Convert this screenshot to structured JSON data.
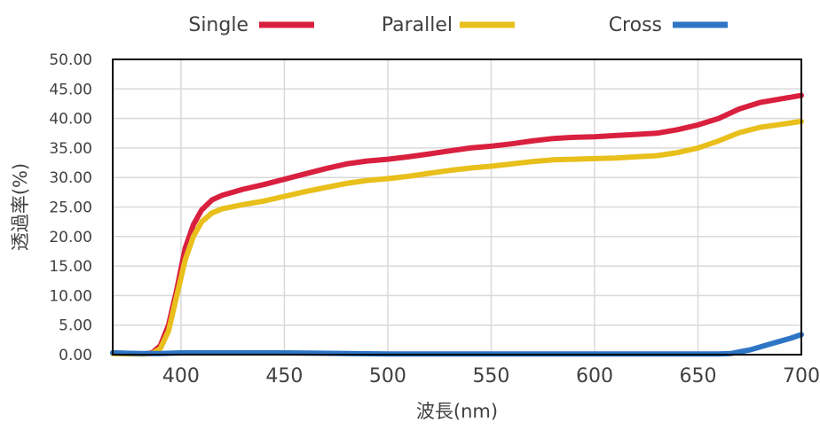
{
  "chart_data": {
    "type": "line",
    "xlabel": "波長(nm)",
    "ylabel": "透過率(%)",
    "xlim": [
      367,
      700
    ],
    "ylim": [
      0,
      50
    ],
    "grid": true,
    "legend_position": "top",
    "x_ticks": [
      "400",
      "450",
      "500",
      "550",
      "600",
      "650",
      "700"
    ],
    "y_ticks": [
      "0.00",
      "5.00",
      "10.00",
      "15.00",
      "20.00",
      "25.00",
      "30.00",
      "35.00",
      "40.00",
      "45.00",
      "50.00"
    ],
    "series": [
      {
        "name": "Single",
        "color": "#D9203E",
        "points": [
          [
            367,
            0.3
          ],
          [
            375,
            0.2
          ],
          [
            382,
            0.1
          ],
          [
            386,
            0.3
          ],
          [
            390,
            1.5
          ],
          [
            394,
            5
          ],
          [
            398,
            11
          ],
          [
            402,
            18
          ],
          [
            406,
            22
          ],
          [
            410,
            24.5
          ],
          [
            415,
            26.2
          ],
          [
            420,
            27
          ],
          [
            430,
            28
          ],
          [
            440,
            28.8
          ],
          [
            450,
            29.7
          ],
          [
            460,
            30.6
          ],
          [
            470,
            31.5
          ],
          [
            480,
            32.3
          ],
          [
            490,
            32.8
          ],
          [
            500,
            33.1
          ],
          [
            510,
            33.5
          ],
          [
            520,
            34
          ],
          [
            530,
            34.5
          ],
          [
            540,
            35
          ],
          [
            550,
            35.3
          ],
          [
            560,
            35.7
          ],
          [
            570,
            36.2
          ],
          [
            580,
            36.6
          ],
          [
            590,
            36.8
          ],
          [
            600,
            36.9
          ],
          [
            610,
            37.1
          ],
          [
            620,
            37.3
          ],
          [
            630,
            37.5
          ],
          [
            640,
            38.1
          ],
          [
            650,
            38.9
          ],
          [
            660,
            40
          ],
          [
            670,
            41.6
          ],
          [
            680,
            42.7
          ],
          [
            690,
            43.3
          ],
          [
            700,
            43.9
          ]
        ]
      },
      {
        "name": "Parallel",
        "color": "#E8BF1B",
        "points": [
          [
            367,
            0.2
          ],
          [
            375,
            0.1
          ],
          [
            382,
            0.1
          ],
          [
            386,
            0.2
          ],
          [
            390,
            1
          ],
          [
            394,
            4
          ],
          [
            398,
            10
          ],
          [
            402,
            16
          ],
          [
            406,
            20
          ],
          [
            410,
            22.5
          ],
          [
            415,
            24
          ],
          [
            420,
            24.7
          ],
          [
            430,
            25.4
          ],
          [
            440,
            26
          ],
          [
            450,
            26.8
          ],
          [
            460,
            27.6
          ],
          [
            470,
            28.3
          ],
          [
            480,
            29
          ],
          [
            490,
            29.5
          ],
          [
            500,
            29.8
          ],
          [
            510,
            30.2
          ],
          [
            520,
            30.7
          ],
          [
            530,
            31.2
          ],
          [
            540,
            31.6
          ],
          [
            550,
            31.9
          ],
          [
            560,
            32.3
          ],
          [
            570,
            32.7
          ],
          [
            580,
            33
          ],
          [
            590,
            33.1
          ],
          [
            600,
            33.2
          ],
          [
            610,
            33.3
          ],
          [
            620,
            33.5
          ],
          [
            630,
            33.7
          ],
          [
            640,
            34.2
          ],
          [
            650,
            35
          ],
          [
            660,
            36.2
          ],
          [
            670,
            37.6
          ],
          [
            680,
            38.5
          ],
          [
            690,
            39
          ],
          [
            700,
            39.5
          ]
        ]
      },
      {
        "name": "Cross",
        "color": "#2E75C6",
        "points": [
          [
            367,
            0.3
          ],
          [
            380,
            0.2
          ],
          [
            390,
            0.2
          ],
          [
            400,
            0.3
          ],
          [
            420,
            0.3
          ],
          [
            450,
            0.3
          ],
          [
            480,
            0.2
          ],
          [
            500,
            0.1
          ],
          [
            550,
            0.1
          ],
          [
            600,
            0.1
          ],
          [
            640,
            0.1
          ],
          [
            660,
            0.1
          ],
          [
            666,
            0.2
          ],
          [
            675,
            0.8
          ],
          [
            685,
            1.8
          ],
          [
            695,
            2.8
          ],
          [
            700,
            3.4
          ]
        ]
      }
    ]
  }
}
